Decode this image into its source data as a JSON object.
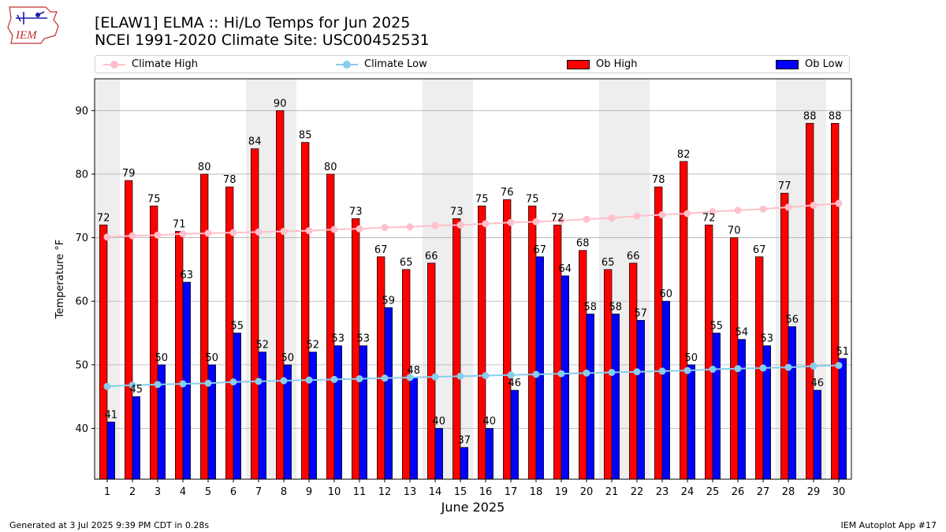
{
  "header": {
    "title_line1": "[ELAW1] ELMA :: Hi/Lo Temps for Jun 2025",
    "title_line2": "NCEI 1991-2020 Climate Site: USC00452531",
    "logo_text": "IEM"
  },
  "legend": {
    "climate_high": "Climate High",
    "climate_low": "Climate Low",
    "ob_high": "Ob High",
    "ob_low": "Ob Low"
  },
  "footer": {
    "generated": "Generated at 3 Jul 2025 9:39 PM CDT in 0.28s",
    "app": "IEM Autoplot App #17"
  },
  "colors": {
    "ob_high": "#ff0000",
    "ob_low": "#0000ff",
    "climate_high": "#ffc0cb",
    "climate_low": "#87ceeb",
    "weekend_shade": "#eeeeee",
    "grid": "#b0b0b0"
  },
  "chart_data": {
    "type": "bar",
    "xlabel": "June 2025",
    "ylabel": "Temperature °F",
    "ylim": [
      32,
      95
    ],
    "yticks": [
      40,
      50,
      60,
      70,
      80,
      90
    ],
    "grid": "horizontal",
    "legend_position": "top",
    "categories": [
      "1",
      "2",
      "3",
      "4",
      "5",
      "6",
      "7",
      "8",
      "9",
      "10",
      "11",
      "12",
      "13",
      "14",
      "15",
      "16",
      "17",
      "18",
      "19",
      "20",
      "21",
      "22",
      "23",
      "24",
      "25",
      "26",
      "27",
      "28",
      "29",
      "30"
    ],
    "shaded_days": [
      1,
      7,
      8,
      14,
      15,
      21,
      22,
      28,
      29
    ],
    "series": [
      {
        "name": "Ob High",
        "kind": "bar",
        "values": [
          72,
          79,
          75,
          71,
          80,
          78,
          84,
          90,
          85,
          80,
          73,
          67,
          65,
          66,
          73,
          75,
          76,
          75,
          72,
          68,
          65,
          66,
          78,
          82,
          72,
          70,
          67,
          77,
          88,
          88
        ]
      },
      {
        "name": "Ob Low",
        "kind": "bar",
        "values": [
          41,
          45,
          50,
          63,
          50,
          55,
          52,
          50,
          52,
          53,
          53,
          59,
          48,
          40,
          37,
          40,
          46,
          67,
          64,
          58,
          58,
          57,
          60,
          50,
          55,
          54,
          53,
          56,
          46,
          51
        ]
      },
      {
        "name": "Climate High",
        "kind": "line",
        "values": [
          70.1,
          70.3,
          70.4,
          70.6,
          70.7,
          70.8,
          70.9,
          71.0,
          71.1,
          71.3,
          71.4,
          71.6,
          71.7,
          71.9,
          72.0,
          72.2,
          72.4,
          72.5,
          72.7,
          72.9,
          73.1,
          73.4,
          73.6,
          73.8,
          74.1,
          74.3,
          74.5,
          74.8,
          75.1,
          75.4
        ]
      },
      {
        "name": "Climate Low",
        "kind": "line",
        "values": [
          46.6,
          46.8,
          46.9,
          47.0,
          47.1,
          47.3,
          47.4,
          47.5,
          47.6,
          47.7,
          47.8,
          47.9,
          48.0,
          48.1,
          48.2,
          48.3,
          48.4,
          48.5,
          48.6,
          48.7,
          48.8,
          48.9,
          49.0,
          49.1,
          49.3,
          49.4,
          49.5,
          49.6,
          49.8,
          49.9
        ]
      }
    ]
  }
}
